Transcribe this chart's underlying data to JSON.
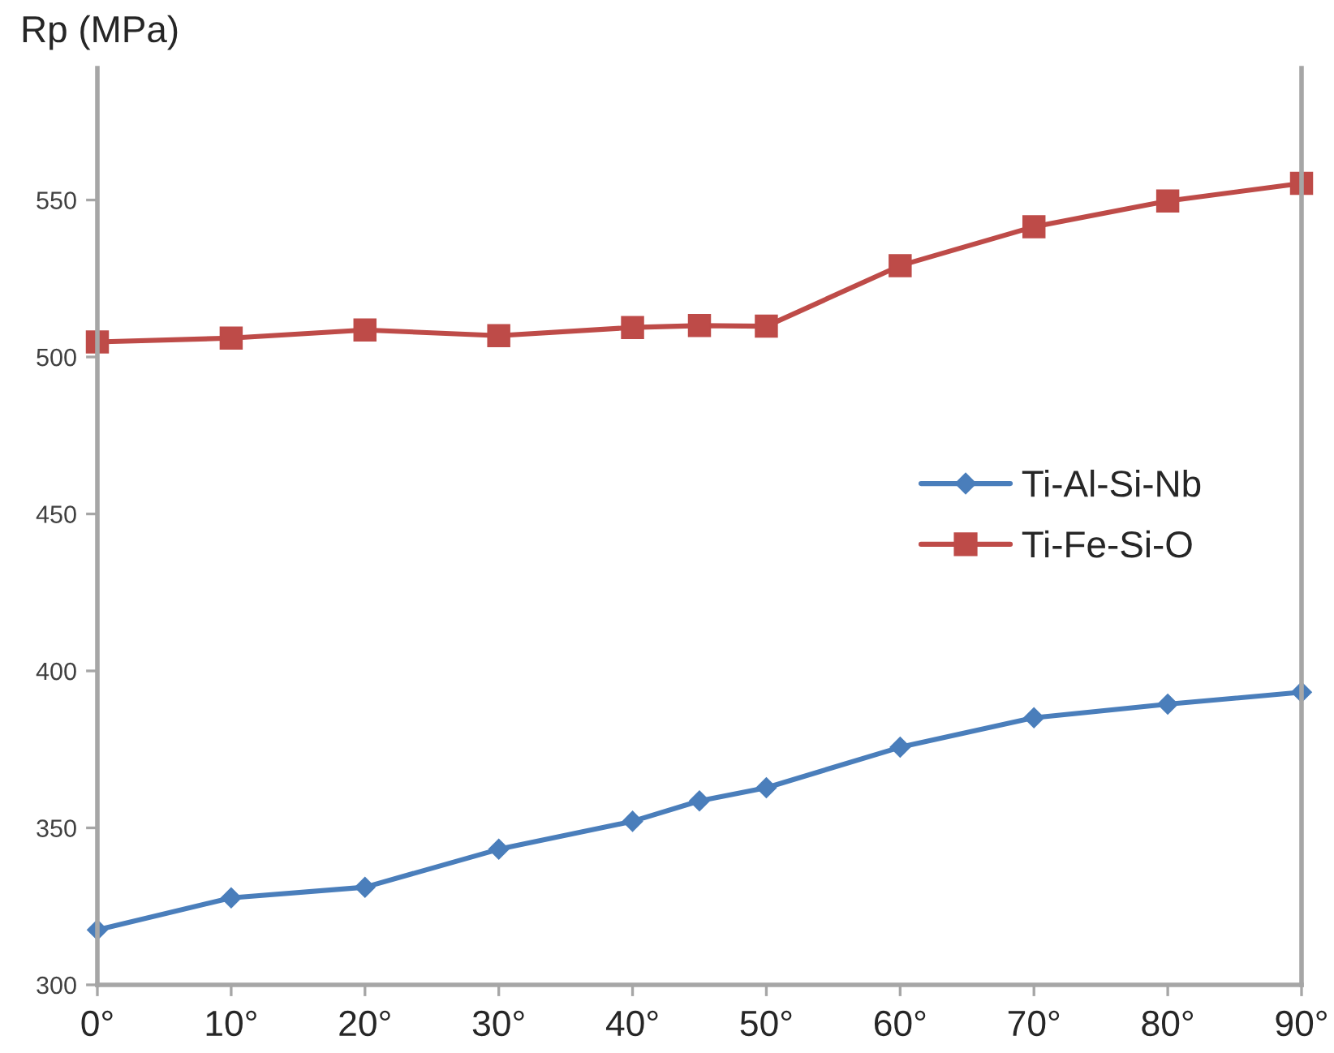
{
  "chart_data": {
    "type": "line",
    "ylabel": "Rp (MPa)",
    "x": [
      0,
      10,
      20,
      30,
      40,
      45,
      50,
      60,
      70,
      80,
      90
    ],
    "series": [
      {
        "name": "Ti-Al-Si-Nb",
        "color": "#4a7ebb",
        "marker": "diamond",
        "values": [
          317.5,
          327.7,
          331.1,
          343.2,
          352.1,
          358.6,
          362.8,
          375.7,
          385.1,
          389.4,
          393.2
        ]
      },
      {
        "name": "Ti-Fe-Si-O",
        "color": "#be4b48",
        "marker": "square",
        "values": [
          504.8,
          506.0,
          508.6,
          506.8,
          509.4,
          510.0,
          509.8,
          529.1,
          541.5,
          549.7,
          555.3
        ]
      }
    ],
    "xlim": [
      0,
      90
    ],
    "xticks": [
      {
        "value": 0,
        "label": "0°"
      },
      {
        "value": 10,
        "label": "10°"
      },
      {
        "value": 20,
        "label": "20°"
      },
      {
        "value": 30,
        "label": "30°"
      },
      {
        "value": 40,
        "label": "40°"
      },
      {
        "value": 50,
        "label": "50°"
      },
      {
        "value": 60,
        "label": "60°"
      },
      {
        "value": 70,
        "label": "70°"
      },
      {
        "value": 80,
        "label": "80°"
      },
      {
        "value": 90,
        "label": "90°"
      }
    ],
    "ylim": [
      300,
      592
    ],
    "yticks": [
      300,
      350,
      400,
      450,
      500,
      550
    ],
    "grid": false,
    "legend": "center right",
    "line_style": "solid"
  }
}
